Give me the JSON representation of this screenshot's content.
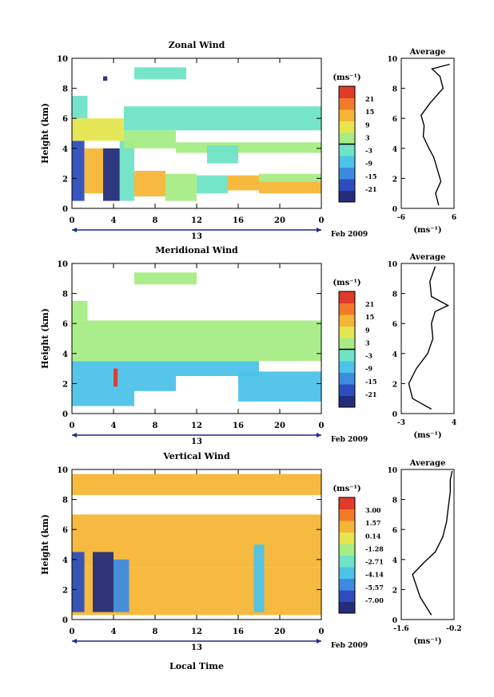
{
  "chart_data": [
    {
      "type": "heatmap",
      "title": "Zonal Wind",
      "ylabel": "Height (km)",
      "xlabel": "",
      "x_ticks": [
        "0",
        "4",
        "8",
        "12",
        "16",
        "20",
        "0"
      ],
      "y_ticks": [
        "0",
        "2",
        "4",
        "6",
        "8",
        "10"
      ],
      "xlim": [
        0,
        24
      ],
      "ylim": [
        0,
        10
      ],
      "day_label": "13",
      "date_label": "Feb 2009",
      "colorbar": {
        "unit": "(ms⁻¹)",
        "ticks": [
          "21",
          "15",
          "9",
          "3",
          "-3",
          "-9",
          "-15",
          "-21"
        ],
        "zero_line_between": [
          "3",
          "-3"
        ],
        "colors": [
          "#252d7a",
          "#2e4dbd",
          "#3d8be0",
          "#4cc3e8",
          "#6fe3c6",
          "#a7ec84",
          "#e5e64f",
          "#f5b636",
          "#f47a2b",
          "#e03a2a"
        ]
      },
      "regions": [
        {
          "x0": 0,
          "x1": 1.2,
          "y0": 0.5,
          "y1": 4.5,
          "v": -16
        },
        {
          "x0": 1.2,
          "x1": 3,
          "y0": 1,
          "y1": 4,
          "v": 9
        },
        {
          "x0": 3,
          "x1": 4.6,
          "y0": 0.5,
          "y1": 4,
          "v": -18
        },
        {
          "x0": 4.6,
          "x1": 6,
          "y0": 0.5,
          "y1": 4.5,
          "v": -4
        },
        {
          "x0": 6,
          "x1": 9,
          "y0": 0.8,
          "y1": 2.5,
          "v": 10
        },
        {
          "x0": 9,
          "x1": 12,
          "y0": 0.5,
          "y1": 2.3,
          "v": 0
        },
        {
          "x0": 12,
          "x1": 15,
          "y0": 1,
          "y1": 2.2,
          "v": -1
        },
        {
          "x0": 15,
          "x1": 18,
          "y0": 1.2,
          "y1": 2.2,
          "v": 11
        },
        {
          "x0": 18,
          "x1": 24,
          "y0": 1,
          "y1": 1.8,
          "v": 9
        },
        {
          "x0": 18,
          "x1": 24,
          "y0": 1.8,
          "y1": 2.3,
          "v": 3
        },
        {
          "x0": 0,
          "x1": 5,
          "y0": 4.5,
          "y1": 6,
          "v": 5
        },
        {
          "x0": 5,
          "x1": 10,
          "y0": 4,
          "y1": 5.2,
          "v": 3
        },
        {
          "x0": 10,
          "x1": 24,
          "y0": 3.7,
          "y1": 4.4,
          "v": 3
        },
        {
          "x0": 5,
          "x1": 24,
          "y0": 5.2,
          "y1": 6.8,
          "v": -1
        },
        {
          "x0": 13,
          "x1": 16,
          "y0": 3,
          "y1": 4.2,
          "v": -2
        },
        {
          "x0": 0,
          "x1": 1.5,
          "y0": 6,
          "y1": 7.5,
          "v": -1
        },
        {
          "x0": 6,
          "x1": 11,
          "y0": 8.6,
          "y1": 9.4,
          "v": -2
        },
        {
          "x0": 3,
          "x1": 3.4,
          "y0": 8.5,
          "y1": 8.8,
          "v": -18
        }
      ],
      "average": {
        "title": "Average",
        "xlabel": "(ms⁻¹)",
        "x_ticks": [
          "-6",
          "6"
        ],
        "xlim": [
          -6,
          6
        ],
        "profile_x": [
          2.5,
          1.8,
          3.0,
          2.2,
          1.4,
          0.3,
          -1.0,
          -0.8,
          -1.5,
          0.5,
          3.5,
          2.8,
          1.0,
          5.0
        ],
        "profile_y": [
          0.2,
          1.0,
          1.8,
          2.6,
          3.4,
          4.0,
          4.8,
          5.5,
          6.2,
          7.0,
          8.0,
          8.8,
          9.3,
          9.6
        ]
      }
    },
    {
      "type": "heatmap",
      "title": "Meridional Wind",
      "ylabel": "Height (km)",
      "xlabel": "",
      "x_ticks": [
        "0",
        "4",
        "8",
        "12",
        "16",
        "20",
        "0"
      ],
      "y_ticks": [
        "0",
        "2",
        "4",
        "6",
        "8",
        "10"
      ],
      "xlim": [
        0,
        24
      ],
      "ylim": [
        0,
        10
      ],
      "day_label": "13",
      "date_label": "Feb 2009",
      "colorbar": {
        "unit": "(ms⁻¹)",
        "ticks": [
          "21",
          "15",
          "9",
          "3",
          "-3",
          "-9",
          "-15",
          "-21"
        ],
        "zero_line_between": [
          "3",
          "-3"
        ],
        "colors": [
          "#252d7a",
          "#2e4dbd",
          "#3d8be0",
          "#4cc3e8",
          "#6fe3c6",
          "#a7ec84",
          "#e5e64f",
          "#f5b636",
          "#f47a2b",
          "#e03a2a"
        ]
      },
      "regions": [
        {
          "x0": 0,
          "x1": 6,
          "y0": 0.5,
          "y1": 3.5,
          "v": -8
        },
        {
          "x0": 6,
          "x1": 10,
          "y0": 1.5,
          "y1": 3.5,
          "v": -6
        },
        {
          "x0": 10,
          "x1": 18,
          "y0": 2.5,
          "y1": 3.5,
          "v": -6
        },
        {
          "x0": 16,
          "x1": 24,
          "y0": 0.8,
          "y1": 2.8,
          "v": -6
        },
        {
          "x0": 4,
          "x1": 4.4,
          "y0": 1.8,
          "y1": 3,
          "v": 20
        },
        {
          "x0": 0,
          "x1": 24,
          "y0": 3.5,
          "y1": 6.2,
          "v": 0
        },
        {
          "x0": 0,
          "x1": 1.5,
          "y0": 6.2,
          "y1": 7.5,
          "v": 0
        },
        {
          "x0": 6,
          "x1": 12,
          "y0": 8.6,
          "y1": 9.4,
          "v": 0
        }
      ],
      "average": {
        "title": "Average",
        "xlabel": "(ms⁻¹)",
        "x_ticks": [
          "-3",
          "4"
        ],
        "xlim": [
          -3,
          4
        ],
        "profile_x": [
          1.0,
          -1.5,
          -2.0,
          -1.0,
          0.5,
          1.2,
          1.0,
          1.5,
          3.2,
          1.0,
          0.8,
          1.5
        ],
        "profile_y": [
          0.3,
          1.0,
          2.0,
          3.0,
          4.0,
          5.0,
          6.0,
          6.8,
          7.2,
          7.8,
          8.8,
          9.8
        ]
      }
    },
    {
      "type": "heatmap",
      "title": "Vertical Wind",
      "ylabel": "Height (km)",
      "xlabel": "Local Time",
      "x_ticks": [
        "0",
        "4",
        "8",
        "12",
        "16",
        "20",
        "0"
      ],
      "y_ticks": [
        "0",
        "2",
        "4",
        "6",
        "8",
        "10"
      ],
      "xlim": [
        0,
        24
      ],
      "ylim": [
        0,
        10
      ],
      "day_label": "13",
      "date_label": "Feb 2009",
      "colorbar": {
        "unit": "(ms⁻¹)",
        "ticks": [
          "3.00",
          "1.57",
          "0.14",
          "-1.28",
          "-2.71",
          "-4.14",
          "-5.57",
          "-7.00"
        ],
        "colors": [
          "#252d7a",
          "#2e4dbd",
          "#3d8be0",
          "#4cc3e8",
          "#6fe3c6",
          "#a7ec84",
          "#e5e64f",
          "#f5b636",
          "#f47a2b",
          "#e03a2a"
        ]
      },
      "regions": [
        {
          "x0": 0,
          "x1": 24,
          "y0": 3.5,
          "y1": 7,
          "v": 0.5
        },
        {
          "x0": 0,
          "x1": 24,
          "y0": 0.3,
          "y1": 3.5,
          "v": 0.8
        },
        {
          "x0": 0,
          "x1": 1.2,
          "y0": 0.5,
          "y1": 4.5,
          "v": -6
        },
        {
          "x0": 2,
          "x1": 4,
          "y0": 0.5,
          "y1": 4.5,
          "v": -6.5
        },
        {
          "x0": 4,
          "x1": 5.5,
          "y0": 0.5,
          "y1": 4,
          "v": -5
        },
        {
          "x0": 17.5,
          "x1": 18.5,
          "y0": 0.5,
          "y1": 5,
          "v": -4
        },
        {
          "x0": 0,
          "x1": 24,
          "y0": 8.3,
          "y1": 9.7,
          "v": 0.3
        }
      ],
      "average": {
        "title": "Average",
        "xlabel": "(ms⁻¹)",
        "x_ticks": [
          "-1.6",
          "-0.2"
        ],
        "xlim": [
          -1.6,
          -0.2
        ],
        "profile_x": [
          -0.8,
          -1.1,
          -1.3,
          -1.0,
          -0.7,
          -0.5,
          -0.4,
          -0.35,
          -0.3,
          -0.3,
          -0.25
        ],
        "profile_y": [
          0.3,
          1.5,
          3.0,
          3.8,
          4.5,
          5.5,
          6.5,
          7.5,
          8.5,
          9.3,
          9.9
        ]
      }
    }
  ]
}
